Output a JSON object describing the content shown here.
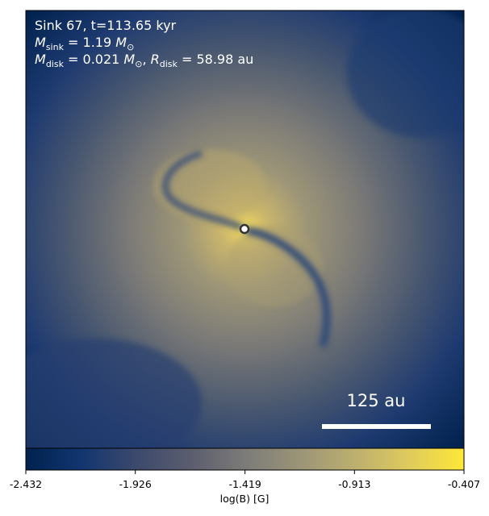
{
  "annotations": [
    [
      "Sink 67, t=113.65 kyr"
    ],
    [
      "M",
      "sink",
      " = 1.19 ",
      "M",
      "⊙"
    ],
    [
      "M",
      "disk",
      " = 0.021 ",
      "M",
      "⊙",
      ", ",
      "R",
      "disk",
      " = 58.98 au"
    ]
  ],
  "scale_bar": "125 au",
  "colorbar": {
    "label": "log(B) [G]",
    "clim": [
      -2.432,
      -0.407
    ],
    "ticks": [
      -2.432,
      -1.926,
      -1.419,
      -0.913,
      -0.407
    ]
  }
}
